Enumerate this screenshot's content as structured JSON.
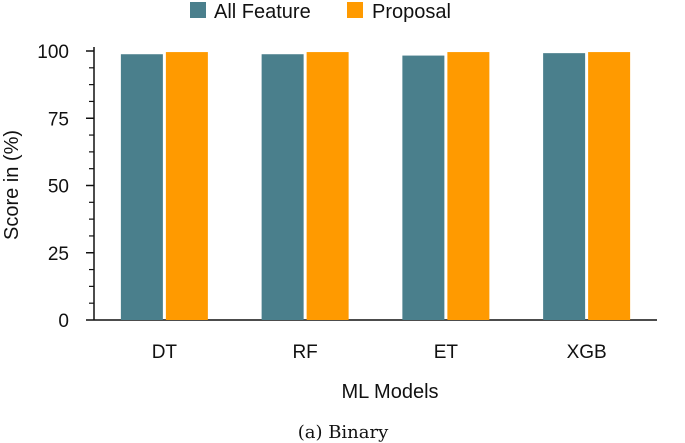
{
  "chart_data": {
    "type": "bar",
    "caption": "(a) Binary",
    "xlabel": "ML Models",
    "ylabel": "Score in (%)",
    "ylim": [
      0,
      100
    ],
    "yticks": [
      0,
      25,
      50,
      75,
      100
    ],
    "categories": [
      "DT",
      "RF",
      "ET",
      "XGB"
    ],
    "series": [
      {
        "name": "All Feature",
        "color": "#4a7f8c",
        "values": [
          98.8,
          98.8,
          98.3,
          99.2
        ]
      },
      {
        "name": "Proposal",
        "color": "#ff9a00",
        "values": [
          99.6,
          99.6,
          99.6,
          99.6
        ]
      }
    ],
    "legend_position": "top-center",
    "grid": false
  }
}
